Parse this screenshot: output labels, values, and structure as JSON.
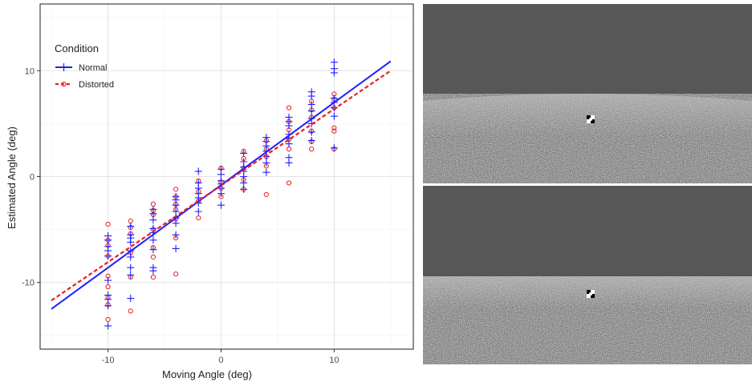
{
  "chart_data": {
    "type": "scatter",
    "xlabel": "Moving Angle (deg)",
    "ylabel": "Estimated Angle (deg)",
    "xlim": [
      -16,
      17
    ],
    "ylim": [
      -16.3,
      16.3
    ],
    "x_ticks": [
      -10,
      0,
      10
    ],
    "y_ticks": [
      -10,
      0,
      10
    ],
    "x_tick_labels": [
      "-10",
      "0",
      "10"
    ],
    "y_tick_labels": [
      "-10",
      "0",
      "10"
    ],
    "grid": true,
    "legend": {
      "title": "Condition",
      "position": "top-left",
      "entries": [
        "Normal",
        "Distorted"
      ]
    },
    "series": [
      {
        "name": "Normal",
        "marker": "plus",
        "color": "#1f1fff",
        "line": {
          "style": "solid",
          "x": [
            -15,
            15
          ],
          "y": [
            -12.5,
            10.9
          ]
        },
        "points": [
          [
            -10,
            -5.6
          ],
          [
            -10,
            -6.0
          ],
          [
            -10,
            -6.6
          ],
          [
            -10,
            -7.0
          ],
          [
            -10,
            -7.5
          ],
          [
            -10,
            -9.8
          ],
          [
            -10,
            -11.2
          ],
          [
            -10,
            -11.6
          ],
          [
            -10,
            -12.2
          ],
          [
            -10,
            -14.1
          ],
          [
            -8,
            -4.7
          ],
          [
            -8,
            -5.5
          ],
          [
            -8,
            -5.8
          ],
          [
            -8,
            -6.2
          ],
          [
            -8,
            -7.0
          ],
          [
            -8,
            -7.6
          ],
          [
            -8,
            -8.6
          ],
          [
            -8,
            -9.3
          ],
          [
            -8,
            -11.5
          ],
          [
            -6,
            -3.1
          ],
          [
            -6,
            -3.5
          ],
          [
            -6,
            -4.1
          ],
          [
            -6,
            -4.9
          ],
          [
            -6,
            -5.3
          ],
          [
            -6,
            -6.0
          ],
          [
            -6,
            -6.9
          ],
          [
            -6,
            -8.6
          ],
          [
            -6,
            -8.9
          ],
          [
            -4,
            -1.9
          ],
          [
            -4,
            -2.2
          ],
          [
            -4,
            -2.7
          ],
          [
            -4,
            -3.3
          ],
          [
            -4,
            -3.9
          ],
          [
            -4,
            -4.4
          ],
          [
            -4,
            -5.5
          ],
          [
            -4,
            -6.8
          ],
          [
            -2,
            0.5
          ],
          [
            -2,
            -0.6
          ],
          [
            -2,
            -1.1
          ],
          [
            -2,
            -1.6
          ],
          [
            -2,
            -2.0
          ],
          [
            -2,
            -2.5
          ],
          [
            -2,
            -3.3
          ],
          [
            0,
            0.7
          ],
          [
            0,
            0.2
          ],
          [
            0,
            -0.4
          ],
          [
            0,
            -0.7
          ],
          [
            0,
            -1.1
          ],
          [
            0,
            -1.6
          ],
          [
            0,
            -2.7
          ],
          [
            2,
            2.2
          ],
          [
            2,
            1.4
          ],
          [
            2,
            0.9
          ],
          [
            2,
            0.5
          ],
          [
            2,
            0.0
          ],
          [
            2,
            -0.6
          ],
          [
            2,
            -1.2
          ],
          [
            4,
            3.7
          ],
          [
            4,
            3.3
          ],
          [
            4,
            2.9
          ],
          [
            4,
            2.4
          ],
          [
            4,
            1.9
          ],
          [
            4,
            1.3
          ],
          [
            4,
            0.4
          ],
          [
            6,
            5.6
          ],
          [
            6,
            5.2
          ],
          [
            6,
            4.8
          ],
          [
            6,
            4.0
          ],
          [
            6,
            3.6
          ],
          [
            6,
            3.1
          ],
          [
            6,
            1.8
          ],
          [
            6,
            1.3
          ],
          [
            8,
            8.0
          ],
          [
            8,
            7.6
          ],
          [
            8,
            6.8
          ],
          [
            8,
            6.2
          ],
          [
            8,
            5.5
          ],
          [
            8,
            5.0
          ],
          [
            8,
            4.2
          ],
          [
            8,
            3.4
          ],
          [
            10,
            10.8
          ],
          [
            10,
            10.2
          ],
          [
            10,
            9.8
          ],
          [
            10,
            7.4
          ],
          [
            10,
            7.0
          ],
          [
            10,
            6.5
          ],
          [
            10,
            5.7
          ],
          [
            10,
            2.7
          ]
        ]
      },
      {
        "name": "Distorted",
        "marker": "circle",
        "color": "#e8201e",
        "line": {
          "style": "dashed",
          "x": [
            -15,
            15
          ],
          "y": [
            -11.7,
            10.0
          ]
        },
        "points": [
          [
            -10,
            -4.5
          ],
          [
            -10,
            -6.0
          ],
          [
            -10,
            -6.5
          ],
          [
            -10,
            -7.5
          ],
          [
            -10,
            -9.4
          ],
          [
            -10,
            -10.4
          ],
          [
            -10,
            -11.4
          ],
          [
            -10,
            -12.1
          ],
          [
            -10,
            -13.5
          ],
          [
            -8,
            -4.2
          ],
          [
            -8,
            -4.8
          ],
          [
            -8,
            -5.4
          ],
          [
            -8,
            -7.2
          ],
          [
            -8,
            -9.5
          ],
          [
            -8,
            -12.7
          ],
          [
            -6,
            -2.6
          ],
          [
            -6,
            -3.2
          ],
          [
            -6,
            -3.6
          ],
          [
            -6,
            -5.0
          ],
          [
            -6,
            -6.7
          ],
          [
            -6,
            -7.6
          ],
          [
            -6,
            -9.5
          ],
          [
            -4,
            -1.2
          ],
          [
            -4,
            -1.9
          ],
          [
            -4,
            -2.6
          ],
          [
            -4,
            -3.1
          ],
          [
            -4,
            -4.0
          ],
          [
            -4,
            -5.8
          ],
          [
            -4,
            -9.2
          ],
          [
            -2,
            -0.4
          ],
          [
            -2,
            -1.4
          ],
          [
            -2,
            -2.3
          ],
          [
            -2,
            -3.9
          ],
          [
            0,
            0.8
          ],
          [
            0,
            -0.5
          ],
          [
            0,
            -1.1
          ],
          [
            0,
            -1.9
          ],
          [
            2,
            2.4
          ],
          [
            2,
            1.7
          ],
          [
            2,
            0.8
          ],
          [
            2,
            -0.3
          ],
          [
            2,
            -1.2
          ],
          [
            4,
            3.4
          ],
          [
            4,
            2.6
          ],
          [
            4,
            1.9
          ],
          [
            4,
            1.0
          ],
          [
            4,
            -1.7
          ],
          [
            6,
            6.5
          ],
          [
            6,
            5.2
          ],
          [
            6,
            4.4
          ],
          [
            6,
            3.5
          ],
          [
            6,
            2.6
          ],
          [
            6,
            -0.6
          ],
          [
            8,
            7.1
          ],
          [
            8,
            6.3
          ],
          [
            8,
            5.6
          ],
          [
            8,
            4.3
          ],
          [
            8,
            3.3
          ],
          [
            8,
            2.6
          ],
          [
            10,
            7.8
          ],
          [
            10,
            7.3
          ],
          [
            10,
            6.5
          ],
          [
            10,
            4.6
          ],
          [
            10,
            4.3
          ],
          [
            10,
            2.6
          ]
        ]
      }
    ]
  },
  "stimuli": {
    "images": [
      {
        "description": "normal-ground-stimulus"
      },
      {
        "description": "distorted-ground-stimulus"
      }
    ],
    "colors": {
      "sky": "#575757",
      "ground": "#b0b0b0",
      "gap": "#ffffff"
    }
  }
}
